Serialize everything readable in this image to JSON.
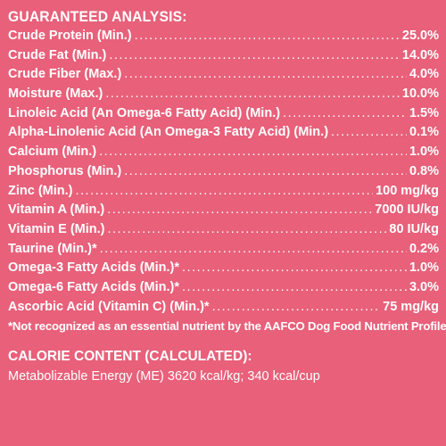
{
  "analysis": {
    "title": "GUARANTEED ANALYSIS:",
    "rows": [
      {
        "label": "Crude Protein (Min.)",
        "value": "25.0%"
      },
      {
        "label": "Crude Fat (Min.)",
        "value": "14.0%"
      },
      {
        "label": "Crude Fiber (Max.)",
        "value": "4.0%"
      },
      {
        "label": "Moisture (Max.)",
        "value": "10.0%"
      },
      {
        "label": "Linoleic Acid (An Omega-6 Fatty Acid) (Min.)",
        "value": "1.5%"
      },
      {
        "label": "Alpha-Linolenic Acid (An Omega-3 Fatty Acid) (Min.)",
        "value": "0.1%"
      },
      {
        "label": "Calcium (Min.)",
        "value": "1.0%"
      },
      {
        "label": "Phosphorus (Min.)",
        "value": "0.8%"
      },
      {
        "label": "Zinc (Min.)",
        "value": "100 mg/kg"
      },
      {
        "label": "Vitamin A (Min.)",
        "value": "7000 IU/kg"
      },
      {
        "label": "Vitamin E (Min.)",
        "value": "80 IU/kg"
      },
      {
        "label": "Taurine (Min.)*",
        "value": "0.2%"
      },
      {
        "label": "Omega-3 Fatty Acids (Min.)*",
        "value": "1.0%"
      },
      {
        "label": "Omega-6 Fatty Acids (Min.)*",
        "value": "3.0%"
      },
      {
        "label": "Ascorbic Acid (Vitamin C) (Min.)*",
        "value": "75 mg/kg"
      }
    ],
    "footnote": "*Not recognized as an essential nutrient by the AAFCO Dog Food Nutrient Profiles."
  },
  "calorie": {
    "title": "CALORIE CONTENT (CALCULATED):",
    "value": "Metabolizable Energy (ME) 3620 kcal/kg; 340 kcal/cup"
  }
}
